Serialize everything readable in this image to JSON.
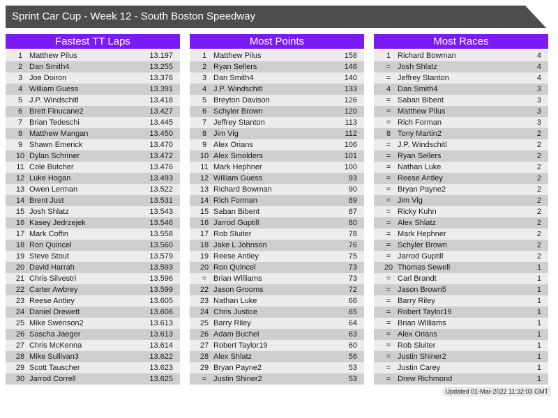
{
  "header": {
    "title": "Sprint Car Cup - Week 12 - South Boston Speedway"
  },
  "tables": [
    {
      "title": "Fastest TT Laps",
      "rows": [
        [
          "1",
          "Matthew Pilus",
          "13.197"
        ],
        [
          "2",
          "Dan Smith4",
          "13.255"
        ],
        [
          "3",
          "Joe Doiron",
          "13.376"
        ],
        [
          "4",
          "William Guess",
          "13.391"
        ],
        [
          "5",
          "J.P. Windschitl",
          "13.418"
        ],
        [
          "6",
          "Brett Finucane2",
          "13.427"
        ],
        [
          "7",
          "Brian Tedeschi",
          "13.445"
        ],
        [
          "8",
          "Matthew Mangan",
          "13.450"
        ],
        [
          "9",
          "Shawn Emerick",
          "13.470"
        ],
        [
          "10",
          "Dylan Schriner",
          "13.472"
        ],
        [
          "11",
          "Cole Butcher",
          "13.476"
        ],
        [
          "12",
          "Luke Hogan",
          "13.493"
        ],
        [
          "13",
          "Owen Lerman",
          "13.522"
        ],
        [
          "14",
          "Brent Just",
          "13.531"
        ],
        [
          "15",
          "Josh Shlatz",
          "13.543"
        ],
        [
          "16",
          "Kasey Jedrzejek",
          "13.546"
        ],
        [
          "17",
          "Mark Coffin",
          "13.558"
        ],
        [
          "18",
          "Ron Quincel",
          "13.560"
        ],
        [
          "19",
          "Steve Stout",
          "13.579"
        ],
        [
          "20",
          "David Harrah",
          "13.593"
        ],
        [
          "21",
          "Chris Silvestri",
          "13.596"
        ],
        [
          "22",
          "Carter Awbrey",
          "13.599"
        ],
        [
          "23",
          "Reese Antley",
          "13.605"
        ],
        [
          "24",
          "Daniel Drewett",
          "13.606"
        ],
        [
          "25",
          "Mike Swenson2",
          "13.613"
        ],
        [
          "26",
          "Sascha Jaeger",
          "13.613"
        ],
        [
          "27",
          "Chris McKenna",
          "13.614"
        ],
        [
          "28",
          "Mike Sullivan3",
          "13.622"
        ],
        [
          "29",
          "Scott Tauscher",
          "13.623"
        ],
        [
          "30",
          "Jarrod Correll",
          "13.625"
        ]
      ]
    },
    {
      "title": "Most Points",
      "rows": [
        [
          "1",
          "Matthew Pilus",
          "158"
        ],
        [
          "2",
          "Ryan Sellers",
          "146"
        ],
        [
          "3",
          "Dan Smith4",
          "140"
        ],
        [
          "4",
          "J.P. Windschitl",
          "133"
        ],
        [
          "5",
          "Breyton Davison",
          "126"
        ],
        [
          "6",
          "Schyler Brown",
          "120"
        ],
        [
          "7",
          "Jeffrey Stanton",
          "113"
        ],
        [
          "8",
          "Jim Vig",
          "112"
        ],
        [
          "9",
          "Alex Orians",
          "106"
        ],
        [
          "10",
          "Alex Smolders",
          "101"
        ],
        [
          "11",
          "Mark Hephner",
          "100"
        ],
        [
          "12",
          "William Guess",
          "93"
        ],
        [
          "13",
          "Richard Bowman",
          "90"
        ],
        [
          "14",
          "Rich Forman",
          "89"
        ],
        [
          "15",
          "Saban Bibent",
          "87"
        ],
        [
          "16",
          "Jarrod Guptill",
          "80"
        ],
        [
          "17",
          "Rob Sluiter",
          "78"
        ],
        [
          "18",
          "Jake L Johnson",
          "76"
        ],
        [
          "19",
          "Reese Antley",
          "75"
        ],
        [
          "20",
          "Ron Quincel",
          "73"
        ],
        [
          "=",
          "Brian Williams",
          "73"
        ],
        [
          "22",
          "Jason Grooms",
          "72"
        ],
        [
          "23",
          "Nathan Luke",
          "66"
        ],
        [
          "24",
          "Chris Justice",
          "65"
        ],
        [
          "25",
          "Barry Riley",
          "64"
        ],
        [
          "26",
          "Adam Buchel",
          "63"
        ],
        [
          "27",
          "Robert Taylor19",
          "60"
        ],
        [
          "28",
          "Alex Shlatz",
          "56"
        ],
        [
          "29",
          "Bryan Payne2",
          "53"
        ],
        [
          "=",
          "Justin Shiner2",
          "53"
        ]
      ]
    },
    {
      "title": "Most Races",
      "rows": [
        [
          "1",
          "Richard Bowman",
          "4"
        ],
        [
          "=",
          "Josh Shlatz",
          "4"
        ],
        [
          "=",
          "Jeffrey Stanton",
          "4"
        ],
        [
          "4",
          "Dan Smith4",
          "3"
        ],
        [
          "=",
          "Saban Bibent",
          "3"
        ],
        [
          "=",
          "Matthew Pilus",
          "3"
        ],
        [
          "=",
          "Rich Forman",
          "3"
        ],
        [
          "8",
          "Tony Martin2",
          "2"
        ],
        [
          "=",
          "J.P. Windschitl",
          "2"
        ],
        [
          "=",
          "Ryan Sellers",
          "2"
        ],
        [
          "=",
          "Nathan Luke",
          "2"
        ],
        [
          "=",
          "Reese Antley",
          "2"
        ],
        [
          "=",
          "Bryan Payne2",
          "2"
        ],
        [
          "=",
          "Jim Vig",
          "2"
        ],
        [
          "=",
          "Ricky Kuhn",
          "2"
        ],
        [
          "=",
          "Alex Shlatz",
          "2"
        ],
        [
          "=",
          "Mark Hephner",
          "2"
        ],
        [
          "=",
          "Schyler Brown",
          "2"
        ],
        [
          "=",
          "Jarrod Guptill",
          "2"
        ],
        [
          "20",
          "Thomas Sewell",
          "1"
        ],
        [
          "=",
          "Carl Brandt",
          "1"
        ],
        [
          "=",
          "Jason Brown5",
          "1"
        ],
        [
          "=",
          "Barry Riley",
          "1"
        ],
        [
          "=",
          "Robert Taylor19",
          "1"
        ],
        [
          "=",
          "Brian Williams",
          "1"
        ],
        [
          "=",
          "Alex Orians",
          "1"
        ],
        [
          "=",
          "Rob Sluiter",
          "1"
        ],
        [
          "=",
          "Justin Shiner2",
          "1"
        ],
        [
          "=",
          "Justin Carey",
          "1"
        ],
        [
          "=",
          "Drew Richmond",
          "1"
        ]
      ]
    }
  ],
  "footer": {
    "updated": "Updated 01-Mar-2022 11:32:03 GMT"
  },
  "colors": {
    "accent": "#7B1AF5",
    "title_bar": "#4D4D4D",
    "row_light": "#ECECEC",
    "row_dark": "#CECECE"
  }
}
